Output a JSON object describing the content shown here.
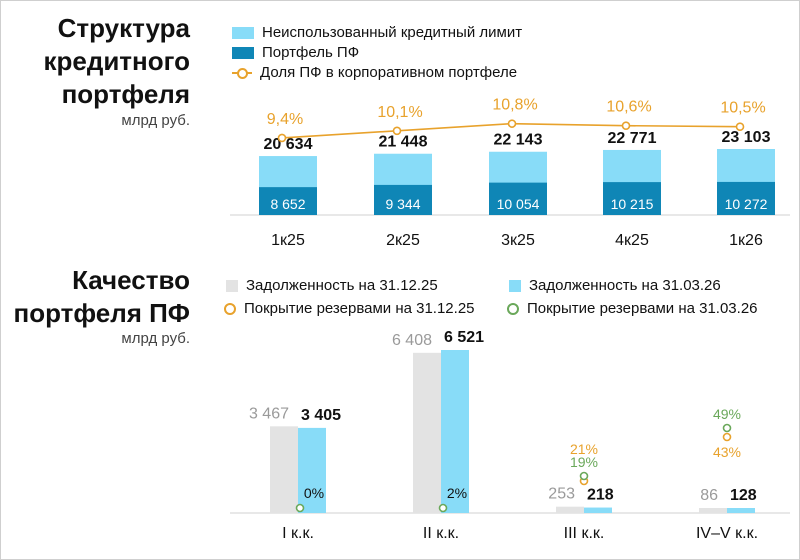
{
  "section1": {
    "title": "Структура\nкредитного\nпортфеля",
    "unit": "млрд руб."
  },
  "section2": {
    "title": "Качество\nпортфеля ПФ",
    "unit": "млрд руб."
  },
  "colors": {
    "light_blue": "#88dcf8",
    "dark_blue": "#0f86b6",
    "orange": "#e8a22c",
    "gray_bar": "#e3e3e3",
    "green": "#6aa85a",
    "gray_text": "#9a9a9a"
  },
  "chart_data": [
    {
      "type": "bar",
      "stacked": true,
      "categories": [
        "1к25",
        "2к25",
        "3к25",
        "4к25",
        "1к26"
      ],
      "series": [
        {
          "name": "Неиспользованный кредитный лимит",
          "values": [
            11982,
            12104,
            12089,
            12556,
            12831
          ]
        },
        {
          "name": "Портфель ПФ",
          "values": [
            8652,
            9344,
            10054,
            10215,
            10272
          ]
        }
      ],
      "totals": [
        20634,
        21448,
        22143,
        22771,
        23103
      ],
      "total_labels": [
        "20 634",
        "21 448",
        "22 143",
        "22 771",
        "23 103"
      ],
      "segment_labels": [
        "8 652",
        "9 344",
        "10 054",
        "10 215",
        "10 272"
      ],
      "line": {
        "name": "Доля ПФ в корпоративном портфеле",
        "values": [
          9.4,
          10.1,
          10.8,
          10.6,
          10.5
        ],
        "labels": [
          "9,4%",
          "10,1%",
          "10,8%",
          "10,6%",
          "10,5%"
        ]
      },
      "legend": [
        "Неиспользованный кредитный лимит",
        "Портфель ПФ",
        "Доля ПФ в корпоративном портфеле"
      ]
    },
    {
      "type": "bar",
      "categories": [
        "I к.к.",
        "II к.к.",
        "III к.к.",
        "IV–V к.к."
      ],
      "series": [
        {
          "name": "Задолженность на 31.12.25",
          "values": [
            3467,
            6408,
            253,
            86
          ],
          "labels": [
            "3 467",
            "6 408",
            "253",
            "86"
          ]
        },
        {
          "name": "Задолженность на 31.03.26",
          "values": [
            3405,
            6521,
            218,
            128
          ],
          "labels": [
            "3 405",
            "6 521",
            "218",
            "128"
          ]
        },
        {
          "name": "Покрытие резервами на 31.12.25",
          "values": [
            null,
            null,
            21,
            43
          ],
          "labels": [
            "",
            "",
            "21%",
            "43%"
          ]
        },
        {
          "name": "Покрытие резервами на 31.03.26",
          "values": [
            0,
            2,
            19,
            49
          ],
          "labels": [
            "0%",
            "2%",
            "19%",
            "49%"
          ]
        }
      ],
      "legend": [
        "Задолженность на 31.12.25",
        "Задолженность на 31.03.26",
        "Покрытие резервами на 31.12.25",
        "Покрытие резервами на 31.03.26"
      ]
    }
  ]
}
